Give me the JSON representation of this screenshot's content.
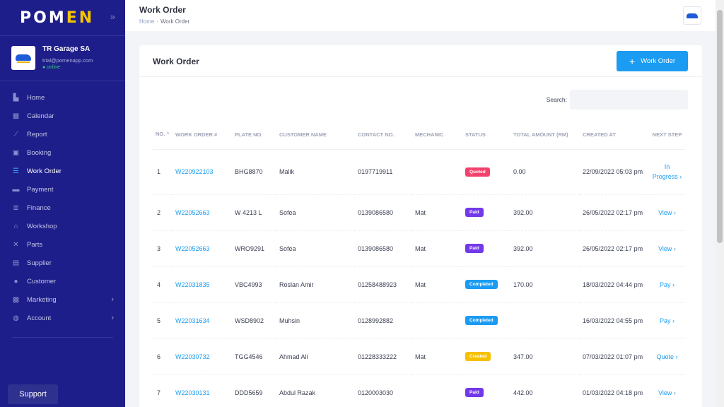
{
  "sidebar": {
    "logo_main": "POM",
    "logo_accent": "EN",
    "logo_pre": "P",
    "profile": {
      "name": "TR Garage SA",
      "email": "trial@pomenapp.com",
      "status": "● online"
    },
    "nav": [
      {
        "label": "Home",
        "icon": "home-icon",
        "glyph": "▙",
        "active": false,
        "submenu": false
      },
      {
        "label": "Calendar",
        "icon": "calendar-icon",
        "glyph": "▦",
        "active": false,
        "submenu": false
      },
      {
        "label": "Report",
        "icon": "chart-line-icon",
        "glyph": "⟋",
        "active": false,
        "submenu": false
      },
      {
        "label": "Booking",
        "icon": "booking-icon",
        "glyph": "▣",
        "active": false,
        "submenu": false
      },
      {
        "label": "Work Order",
        "icon": "work-order-icon",
        "glyph": "☰",
        "active": true,
        "submenu": false
      },
      {
        "label": "Payment",
        "icon": "payment-icon",
        "glyph": "▬",
        "active": false,
        "submenu": false
      },
      {
        "label": "Finance",
        "icon": "finance-icon",
        "glyph": "≣",
        "active": false,
        "submenu": false
      },
      {
        "label": "Workshop",
        "icon": "workshop-icon",
        "glyph": "⌂",
        "active": false,
        "submenu": false
      },
      {
        "label": "Parts",
        "icon": "tools-icon",
        "glyph": "✕",
        "active": false,
        "submenu": false
      },
      {
        "label": "Supplier",
        "icon": "supplier-icon",
        "glyph": "▤",
        "active": false,
        "submenu": false
      },
      {
        "label": "Customer",
        "icon": "customer-icon",
        "glyph": "●",
        "active": false,
        "submenu": false
      },
      {
        "label": "Marketing",
        "icon": "marketing-icon",
        "glyph": "▩",
        "active": false,
        "submenu": true
      },
      {
        "label": "Account",
        "icon": "account-icon",
        "glyph": "◍",
        "active": false,
        "submenu": true
      }
    ],
    "support_label": "Support"
  },
  "header": {
    "title": "Work Order",
    "breadcrumb": {
      "home": "Home",
      "sep": "-",
      "current": "Work Order"
    }
  },
  "card": {
    "title": "Work Order",
    "add_button_label": "Work Order",
    "search_label": "Search:",
    "search_value": ""
  },
  "table": {
    "columns": [
      {
        "key": "no",
        "label": "NO."
      },
      {
        "key": "wo",
        "label": "WORK ORDER #"
      },
      {
        "key": "plate",
        "label": "PLATE NO."
      },
      {
        "key": "customer",
        "label": "CUSTOMER NAME"
      },
      {
        "key": "contact",
        "label": "CONTACT NO."
      },
      {
        "key": "mechanic",
        "label": "MECHANIC"
      },
      {
        "key": "status",
        "label": "STATUS"
      },
      {
        "key": "amount",
        "label": "TOTAL AMOUNT (RM)"
      },
      {
        "key": "created",
        "label": "CREATED AT"
      },
      {
        "key": "next",
        "label": "NEXT STEP"
      }
    ],
    "sort_glyph": "^",
    "rows": [
      {
        "no": "1",
        "wo": "W220922103",
        "plate": "BHG8870",
        "customer": "Malik",
        "contact": "0197719911",
        "mechanic": "",
        "status": "Quoted",
        "status_color": "#f1416c",
        "amount": "0.00",
        "created": "22/09/2022 05:03 pm",
        "next": "In Progress ›"
      },
      {
        "no": "2",
        "wo": "W22052663",
        "plate": "W 4213 L",
        "customer": "Sofea",
        "contact": "0139086580",
        "mechanic": "Mat",
        "status": "Paid",
        "status_color": "#7239ea",
        "amount": "392.00",
        "created": "26/05/2022 02:17 pm",
        "next": "View ›"
      },
      {
        "no": "3",
        "wo": "W22052663",
        "plate": "WRO9291",
        "customer": "Sofea",
        "contact": "0139086580",
        "mechanic": "Mat",
        "status": "Paid",
        "status_color": "#7239ea",
        "amount": "392.00",
        "created": "26/05/2022 02:17 pm",
        "next": "View ›"
      },
      {
        "no": "4",
        "wo": "W22031835",
        "plate": "VBC4993",
        "customer": "Roslan Amir",
        "contact": "01258488923",
        "mechanic": "Mat",
        "status": "Completed",
        "status_color": "#1b9cf2",
        "amount": "170.00",
        "created": "18/03/2022 04:44 pm",
        "next": "Pay ›"
      },
      {
        "no": "5",
        "wo": "W22031634",
        "plate": "WSD8902",
        "customer": "Muhsin",
        "contact": "0128992882",
        "mechanic": "",
        "status": "Completed",
        "status_color": "#1b9cf2",
        "amount": "",
        "created": "16/03/2022 04:55 pm",
        "next": "Pay ›"
      },
      {
        "no": "6",
        "wo": "W22030732",
        "plate": "TGG4546",
        "customer": "Ahmad Ali",
        "contact": "01228333222",
        "mechanic": "Mat",
        "status": "Created",
        "status_color": "#f6c000",
        "amount": "347.00",
        "created": "07/03/2022 01:07 pm",
        "next": "Quote ›"
      },
      {
        "no": "7",
        "wo": "W22030131",
        "plate": "DDD5659",
        "customer": "Abdul Razak",
        "contact": "0120003030",
        "mechanic": "",
        "status": "Paid",
        "status_color": "#7239ea",
        "amount": "442.00",
        "created": "01/03/2022 04:18 pm",
        "next": "View ›"
      }
    ]
  },
  "colors": {
    "sidebar": "#1e1e8a",
    "accent": "#1b9cf2",
    "logo_accent": "#f5c400"
  }
}
